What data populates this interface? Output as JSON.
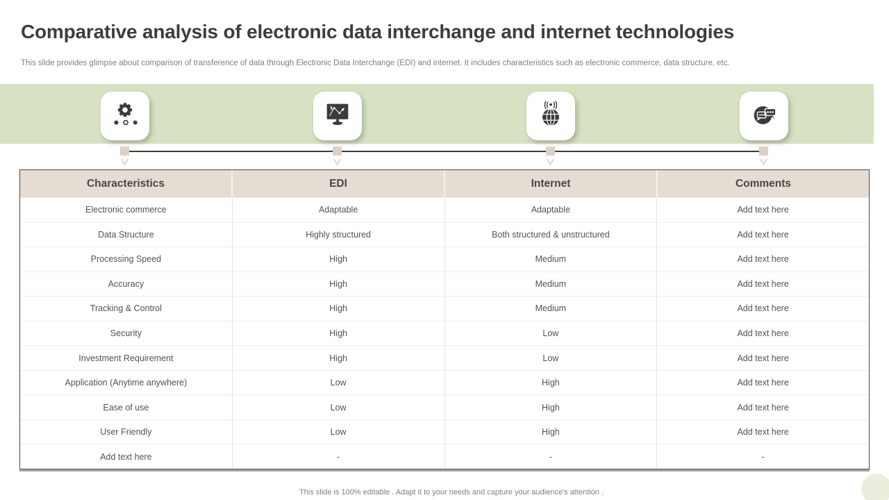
{
  "slide": {
    "title": "Comparative analysis of electronic data interchange and internet technologies",
    "subtitle": "This slide provides glimpse about comparison of transference of data through Electronic Data Interchange (EDI) and internet. It includes characteristics such as electronic commerce, data structure, etc.",
    "footer": "This slide is 100% editable . Adapt it to your needs and capture your audience's attention ."
  },
  "icons": [
    {
      "name": "gear-process-icon"
    },
    {
      "name": "monitor-network-icon"
    },
    {
      "name": "globe-wireless-icon"
    },
    {
      "name": "chat-bubbles-icon"
    }
  ],
  "table": {
    "headers": [
      "Characteristics",
      "EDI",
      "Internet",
      "Comments"
    ],
    "rows": [
      [
        "Electronic commerce",
        "Adaptable",
        "Adaptable",
        "Add text here"
      ],
      [
        "Data Structure",
        "Highly structured",
        "Both structured & unstructured",
        "Add text here"
      ],
      [
        "Processing Speed",
        "High",
        "Medium",
        "Add text here"
      ],
      [
        "Accuracy",
        "High",
        "Medium",
        "Add text here"
      ],
      [
        "Tracking & Control",
        "High",
        "Medium",
        "Add text here"
      ],
      [
        "Security",
        "High",
        "Low",
        "Add text here"
      ],
      [
        "Investment Requirement",
        "High",
        "Low",
        "Add text here"
      ],
      [
        "Application (Anytime anywhere)",
        "Low",
        "High",
        "Add text here"
      ],
      [
        "Ease of use",
        "Low",
        "High",
        "Add text here"
      ],
      [
        "User Friendly",
        "Low",
        "High",
        "Add text here"
      ],
      [
        "Add text here",
        "-",
        "-",
        "-"
      ]
    ]
  },
  "colors": {
    "band_green": "#d6e2c2",
    "header_beige": "#e5ddd3",
    "icon_dark": "#3b3b38",
    "marker_beige": "#ddd1c7",
    "arrow_beige": "#e2d7cd",
    "title_text": "#3d3d3d",
    "muted_text": "#7f7f7f",
    "cell_text": "#525252"
  }
}
